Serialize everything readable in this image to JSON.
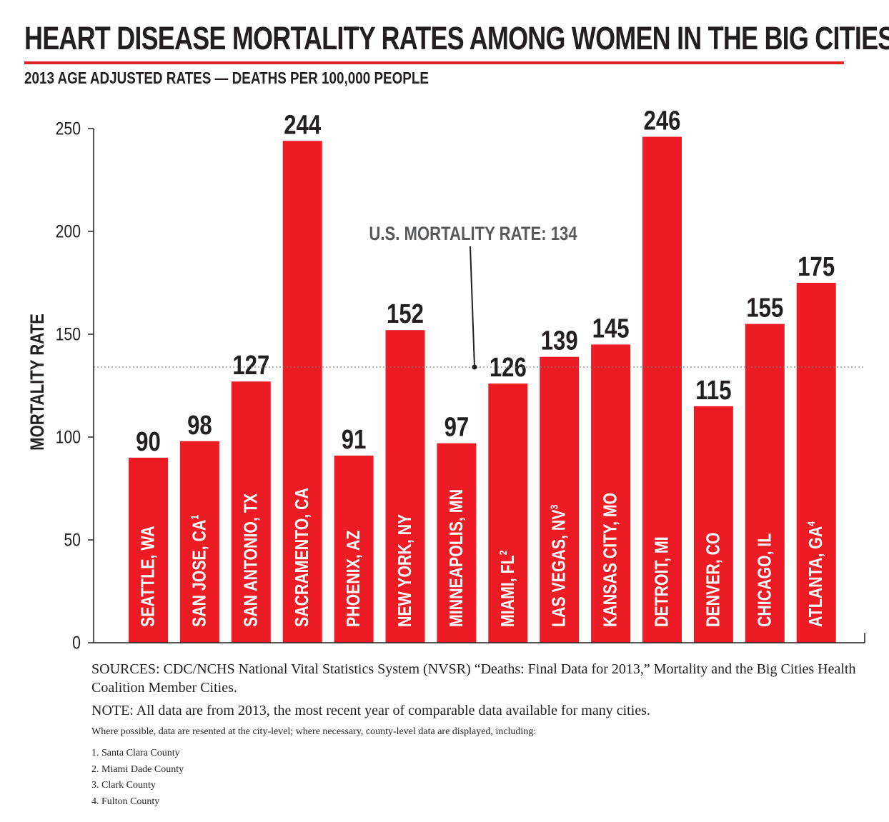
{
  "header": {
    "title": "HEART DISEASE MORTALITY RATES AMONG WOMEN IN THE BIG CITIES",
    "subtitle": "2013 AGE ADJUSTED RATES — DEATHS PER 100,000 PEOPLE"
  },
  "chart_data": {
    "type": "bar",
    "ylabel": "MORTALITY RATE",
    "xlabel": "",
    "ylim": [
      0,
      250
    ],
    "yticks": [
      0,
      50,
      100,
      150,
      200,
      250
    ],
    "categories": [
      {
        "label": "SEATTLE, WA",
        "sup": ""
      },
      {
        "label": "SAN JOSE, CA",
        "sup": "1"
      },
      {
        "label": "SAN ANTONIO, TX",
        "sup": ""
      },
      {
        "label": "SACRAMENTO, CA",
        "sup": ""
      },
      {
        "label": "PHOENIX, AZ",
        "sup": ""
      },
      {
        "label": "NEW YORK, NY",
        "sup": ""
      },
      {
        "label": "MINNEAPOLIS, MN",
        "sup": ""
      },
      {
        "label": "MIAMI, FL",
        "sup": "2"
      },
      {
        "label": "LAS VEGAS, NV",
        "sup": "3"
      },
      {
        "label": "KANSAS CITY, MO",
        "sup": ""
      },
      {
        "label": "DETROIT, MI",
        "sup": ""
      },
      {
        "label": "DENVER, CO",
        "sup": ""
      },
      {
        "label": "CHICAGO, IL",
        "sup": ""
      },
      {
        "label": "ATLANTA, GA",
        "sup": "4"
      }
    ],
    "values": [
      90,
      98,
      127,
      244,
      91,
      152,
      97,
      126,
      139,
      145,
      246,
      115,
      155,
      175
    ],
    "reference_line": {
      "value": 134,
      "label": "U.S. MORTALITY RATE: 134"
    },
    "grid": false,
    "colors": {
      "bar": "#ed1c24",
      "text": "#231f20",
      "bar_text": "#ffffff",
      "annotation": "#58595b",
      "rule": "#e01e25"
    }
  },
  "footnotes": {
    "sources": "SOURCES: CDC/NCHS National Vital Statistics System (NVSR) “Deaths: Final Data for 2013,” Mortality and the Big Cities Health Coalition Member Cities.",
    "note": "NOTE: All data are from 2013, the most recent year of comparable data available for many  cities.",
    "detail": "Where possible, data are resented at the city-level; where necessary, county-level data are displayed, including:",
    "counties": [
      "1. Santa Clara County",
      "2. Miami Dade County",
      "3. Clark County",
      "4. Fulton County"
    ]
  }
}
